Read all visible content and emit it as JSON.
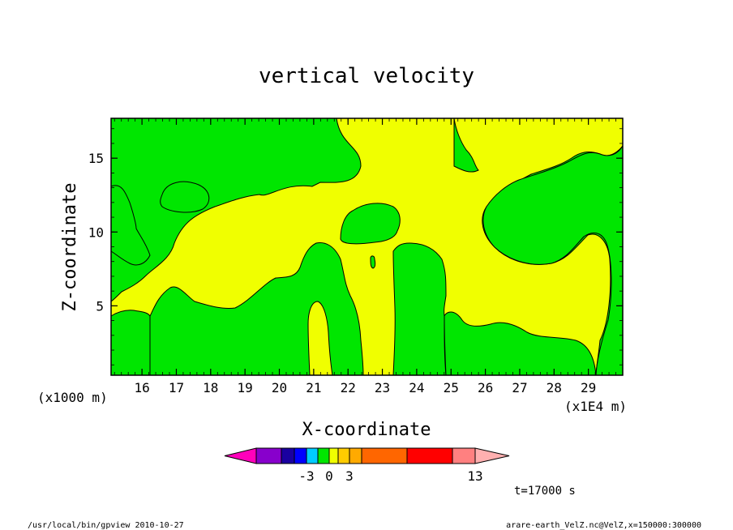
{
  "chart_data": {
    "type": "heatmap",
    "title": "vertical velocity",
    "xlabel": "X-coordinate",
    "ylabel": "Z-coordinate",
    "x_unit_left": "(x1000 m)",
    "x_unit_right": "(x1E4 m)",
    "xlim": [
      15.1,
      30.0
    ],
    "ylim": [
      0.3,
      17.7
    ],
    "xticks": [
      16,
      17,
      18,
      19,
      20,
      21,
      22,
      23,
      24,
      25,
      26,
      27,
      28,
      29
    ],
    "yticks": [
      5,
      10,
      15
    ],
    "regions": {
      "positive_color": "#f0ff00",
      "negative_color": "#00e600"
    },
    "colorbar": {
      "colors": [
        "#ff00bb",
        "#8800cc",
        "#1a00a0",
        "#0000ff",
        "#00ccff",
        "#00e600",
        "#f0ff00",
        "#ffcc00",
        "#ffaa00",
        "#ff6600",
        "#ff0000",
        "#ff8080",
        "#ffb0b0"
      ],
      "labels": [
        {
          "value": "-3",
          "index": 3
        },
        {
          "value": "0",
          "index": 5
        },
        {
          "value": "3",
          "index": 7
        },
        {
          "value": "13",
          "index": 11
        }
      ]
    },
    "time_label": "t=17000 s",
    "footer_left": "/usr/local/bin/gpview  2010-10-27",
    "footer_right": "arare-earth_VelZ.nc@VelZ,x=150000:300000"
  }
}
